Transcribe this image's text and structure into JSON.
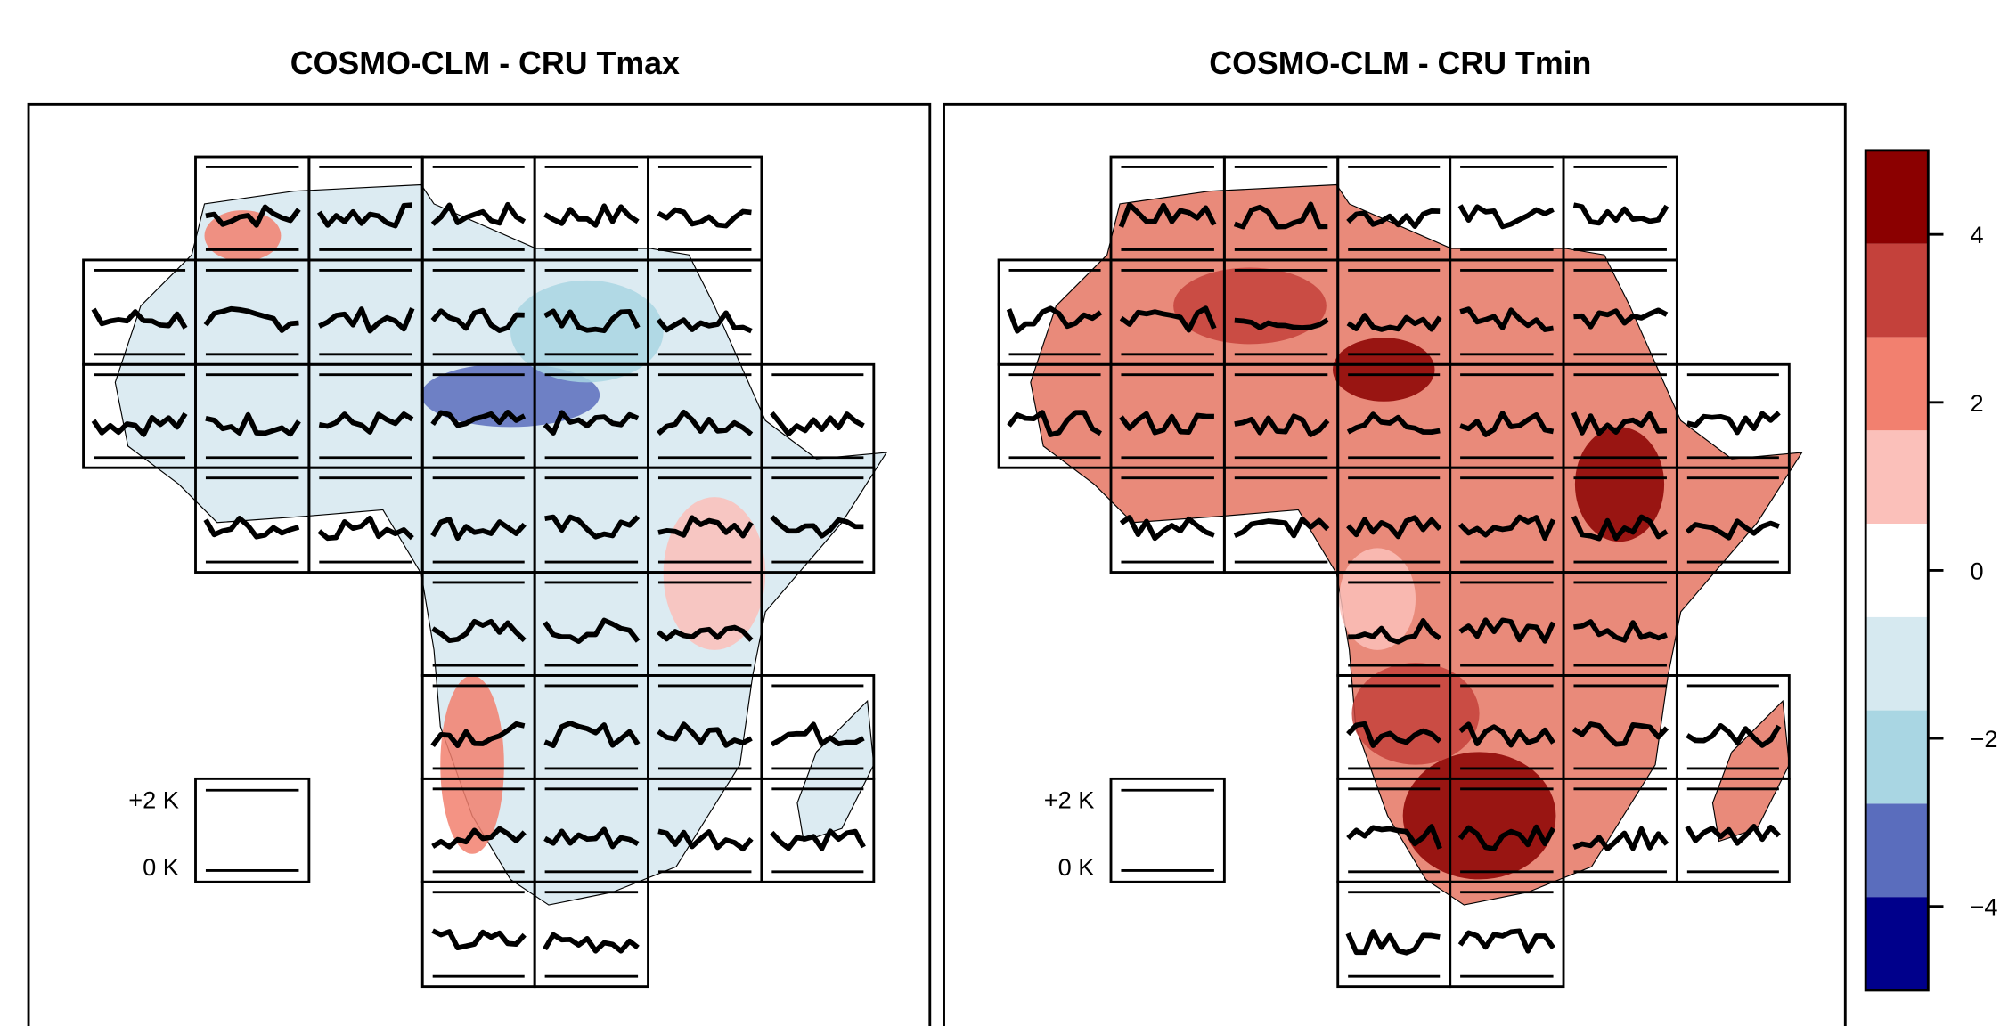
{
  "panels": [
    {
      "title": "COSMO-CLM - CRU Tmax",
      "legend": {
        "labels": [
          "+2 K",
          "0 K"
        ]
      }
    },
    {
      "title": "COSMO-CLM - CRU Tmin",
      "legend": {
        "labels": [
          "+2 K",
          "0 K"
        ]
      }
    }
  ],
  "colorbar": {
    "limits": [
      -5,
      5
    ],
    "colors": [
      "#00008b",
      "#5a6dbd",
      "#a9d6e3",
      "#d6e9f0",
      "#ffffff",
      "#fbc0ba",
      "#f2806f",
      "#c4413b",
      "#8b0000"
    ],
    "ticks": [
      {
        "value": -4,
        "label": "−4"
      },
      {
        "value": -2,
        "label": "−2"
      },
      0,
      2,
      4
    ]
  }
}
